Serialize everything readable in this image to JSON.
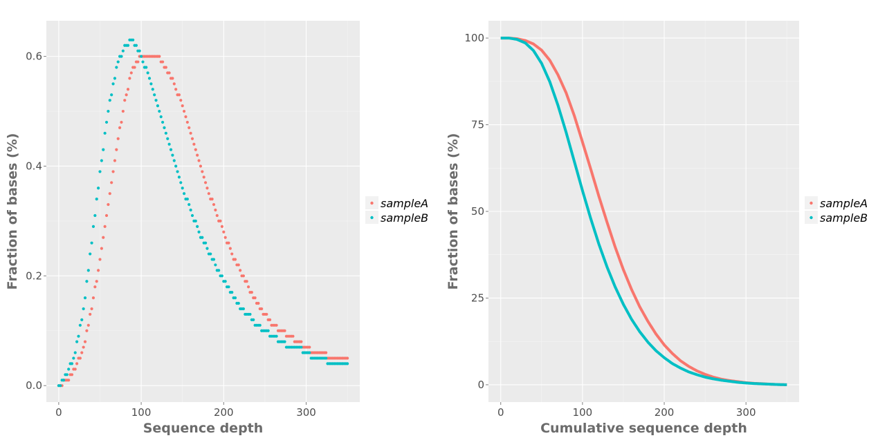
{
  "colors": {
    "panel_background": "#ebebeb",
    "grid_major": "#ffffff",
    "sampleA": "#f8766d",
    "sampleB": "#00bfc4"
  },
  "chart_data": [
    {
      "type": "scatter",
      "xlabel": "Sequence depth",
      "ylabel": "Fraction of bases (%)",
      "xlim": [
        -15,
        365
      ],
      "ylim": [
        -0.03,
        0.665
      ],
      "xticks": [
        0,
        100,
        200,
        300
      ],
      "yticks": [
        0.0,
        0.2,
        0.4,
        0.6
      ],
      "xtick_labels": [
        "0",
        "100",
        "200",
        "300"
      ],
      "ytick_labels": [
        "0.0",
        "0.2",
        "0.4",
        "0.6"
      ],
      "grid": true,
      "legend_position": "right",
      "description_note": "Coverage depth distribution; values rounded to 0.01 giving step-like dots",
      "series": [
        {
          "name": "sampleA",
          "color": "#f8766d",
          "x": [
            0,
            10,
            20,
            30,
            40,
            50,
            60,
            70,
            80,
            90,
            100,
            110,
            120,
            130,
            140,
            150,
            160,
            170,
            180,
            190,
            200,
            210,
            220,
            230,
            240,
            250,
            260,
            270,
            280,
            290,
            300,
            310,
            320,
            330,
            340,
            350
          ],
          "y": [
            0.0,
            0.01,
            0.03,
            0.07,
            0.14,
            0.23,
            0.33,
            0.43,
            0.52,
            0.58,
            0.6,
            0.6,
            0.6,
            0.58,
            0.55,
            0.51,
            0.46,
            0.41,
            0.36,
            0.32,
            0.28,
            0.24,
            0.21,
            0.18,
            0.15,
            0.13,
            0.11,
            0.1,
            0.09,
            0.08,
            0.07,
            0.06,
            0.06,
            0.05,
            0.05,
            0.05
          ]
        },
        {
          "name": "sampleB",
          "color": "#00bfc4",
          "x": [
            0,
            10,
            20,
            30,
            40,
            50,
            60,
            70,
            80,
            90,
            100,
            110,
            120,
            130,
            140,
            150,
            160,
            170,
            180,
            190,
            200,
            210,
            220,
            230,
            240,
            250,
            260,
            270,
            280,
            290,
            300,
            310,
            320,
            330,
            340,
            350
          ],
          "y": [
            0.0,
            0.02,
            0.06,
            0.14,
            0.26,
            0.39,
            0.5,
            0.58,
            0.62,
            0.63,
            0.6,
            0.56,
            0.51,
            0.46,
            0.41,
            0.36,
            0.32,
            0.28,
            0.25,
            0.22,
            0.19,
            0.17,
            0.14,
            0.13,
            0.11,
            0.1,
            0.09,
            0.08,
            0.07,
            0.07,
            0.06,
            0.05,
            0.05,
            0.04,
            0.04,
            0.04
          ]
        }
      ]
    },
    {
      "type": "line",
      "xlabel": "Cumulative sequence depth",
      "ylabel": "Fraction of bases (%)",
      "xlim": [
        -15,
        365
      ],
      "ylim": [
        -5,
        105
      ],
      "xticks": [
        0,
        100,
        200,
        300
      ],
      "yticks": [
        0,
        25,
        50,
        75,
        100
      ],
      "xtick_labels": [
        "0",
        "100",
        "200",
        "300"
      ],
      "ytick_labels": [
        "0",
        "25",
        "50",
        "75",
        "100"
      ],
      "grid": true,
      "legend_position": "right",
      "series": [
        {
          "name": "sampleA",
          "color": "#f8766d",
          "x": [
            0,
            10,
            20,
            30,
            40,
            50,
            60,
            70,
            80,
            90,
            100,
            110,
            120,
            130,
            140,
            150,
            160,
            170,
            180,
            190,
            200,
            210,
            220,
            230,
            240,
            250,
            260,
            270,
            280,
            290,
            300,
            310,
            320,
            330,
            340,
            350
          ],
          "y": [
            100,
            100,
            99.8,
            99.3,
            98.3,
            96.5,
            93.6,
            89.4,
            84.2,
            77.6,
            70.0,
            62.3,
            54.4,
            46.9,
            39.7,
            33.2,
            27.5,
            22.5,
            18.3,
            14.6,
            11.5,
            9.0,
            6.9,
            5.3,
            4.0,
            3.0,
            2.2,
            1.6,
            1.2,
            0.9,
            0.6,
            0.4,
            0.3,
            0.15,
            0.05,
            0.0
          ]
        },
        {
          "name": "sampleB",
          "color": "#00bfc4",
          "x": [
            0,
            10,
            20,
            30,
            40,
            50,
            60,
            70,
            80,
            90,
            100,
            110,
            120,
            130,
            140,
            150,
            160,
            170,
            180,
            190,
            200,
            210,
            220,
            230,
            240,
            250,
            260,
            270,
            280,
            290,
            300,
            310,
            320,
            330,
            340,
            350
          ],
          "y": [
            100,
            100,
            99.6,
            98.6,
            96.4,
            92.7,
            87.4,
            80.6,
            72.8,
            64.4,
            56.0,
            48.0,
            40.6,
            34.0,
            28.2,
            23.2,
            18.9,
            15.3,
            12.3,
            9.8,
            7.8,
            6.1,
            4.8,
            3.7,
            2.9,
            2.2,
            1.7,
            1.3,
            1.0,
            0.7,
            0.5,
            0.35,
            0.25,
            0.15,
            0.05,
            0.0
          ]
        }
      ]
    }
  ]
}
